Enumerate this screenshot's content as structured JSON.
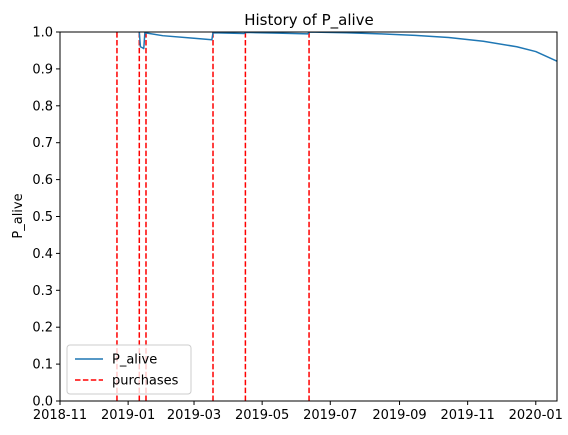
{
  "chart_data": {
    "type": "line",
    "title": "History of P_alive",
    "xlabel": "",
    "ylabel": "P_alive",
    "xlim": [
      "2018-11-01",
      "2020-01-20"
    ],
    "ylim": [
      0,
      1
    ],
    "x_ticks": [
      "2018-11",
      "2019-01",
      "2019-03",
      "2019-05",
      "2019-07",
      "2019-09",
      "2019-11",
      "2020-01"
    ],
    "y_ticks": [
      "0.0",
      "0.1",
      "0.2",
      "0.3",
      "0.4",
      "0.5",
      "0.6",
      "0.7",
      "0.8",
      "0.9",
      "1.0"
    ],
    "grid": false,
    "legend_position": "lower-left",
    "series": [
      {
        "name": "P_alive",
        "color": "#1f77b4",
        "style": "solid",
        "points": [
          [
            "2019-01-11",
            1.0
          ],
          [
            "2019-01-12",
            0.96
          ],
          [
            "2019-01-14",
            0.957
          ],
          [
            "2019-01-15",
            0.955
          ],
          [
            "2019-01-16",
            0.998
          ],
          [
            "2019-02-01",
            0.99
          ],
          [
            "2019-03-01",
            0.983
          ],
          [
            "2019-03-17",
            0.979
          ],
          [
            "2019-03-18",
            0.998
          ],
          [
            "2019-04-15",
            0.996
          ],
          [
            "2019-04-16",
            0.999
          ],
          [
            "2019-05-15",
            0.997
          ],
          [
            "2019-06-11",
            0.995
          ],
          [
            "2019-06-12",
            1.0
          ],
          [
            "2019-07-15",
            0.998
          ],
          [
            "2019-08-15",
            0.995
          ],
          [
            "2019-09-15",
            0.991
          ],
          [
            "2019-10-15",
            0.985
          ],
          [
            "2019-11-15",
            0.975
          ],
          [
            "2019-12-15",
            0.96
          ],
          [
            "2020-01-01",
            0.947
          ],
          [
            "2020-01-20",
            0.921
          ]
        ]
      },
      {
        "name": "purchases",
        "color": "#ff0000",
        "style": "dashed",
        "dates": [
          "2018-12-22",
          "2019-01-11",
          "2019-01-17",
          "2019-03-18",
          "2019-04-16",
          "2019-06-12"
        ]
      }
    ]
  }
}
